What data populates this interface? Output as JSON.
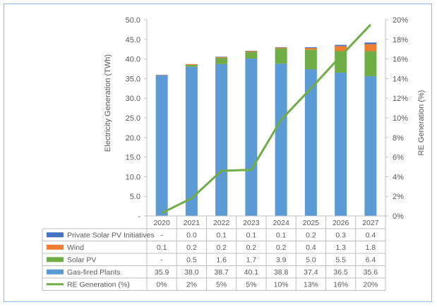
{
  "chart_data": {
    "type": "bar",
    "subtype": "stacked bar with secondary-axis line and data table",
    "categories": [
      "2020",
      "2021",
      "2022",
      "2023",
      "2024",
      "2025",
      "2026",
      "2027"
    ],
    "ylabel": "Electricity Generation (TWh)",
    "y2label": "RE Generation (%)",
    "ylim": [
      0,
      50
    ],
    "y2lim": [
      0,
      20
    ],
    "yticks": [
      "-",
      "5.0",
      "10.0",
      "15.0",
      "20.0",
      "25.0",
      "30.0",
      "35.0",
      "40.0",
      "45.0",
      "50.0"
    ],
    "y2ticks": [
      "0%",
      "2%",
      "4%",
      "6%",
      "8%",
      "10%",
      "12%",
      "14%",
      "16%",
      "18%",
      "20%"
    ],
    "grid": false,
    "legend": "data table below chart",
    "series": [
      {
        "name": "Private Solar PV Initiatives",
        "kind": "bar",
        "color": "#4472c4",
        "values": [
          0,
          0.0,
          0.1,
          0.1,
          0.1,
          0.2,
          0.3,
          0.4
        ],
        "labels": [
          "-",
          "0.0",
          "0.1",
          "0.1",
          "0.1",
          "0.2",
          "0.3",
          "0.4"
        ]
      },
      {
        "name": "Wind",
        "kind": "bar",
        "color": "#ed7d31",
        "values": [
          0.1,
          0.2,
          0.2,
          0.2,
          0.2,
          0.4,
          1.3,
          1.8
        ],
        "labels": [
          "0.1",
          "0.2",
          "0.2",
          "0.2",
          "0.2",
          "0.4",
          "1.3",
          "1.8"
        ]
      },
      {
        "name": "Solar PV",
        "kind": "bar",
        "color": "#70ad47",
        "values": [
          0,
          0.5,
          1.6,
          1.7,
          3.9,
          5.0,
          5.5,
          6.4
        ],
        "labels": [
          "-",
          "0.5",
          "1.6",
          "1.7",
          "3.9",
          "5.0",
          "5.5",
          "6.4"
        ]
      },
      {
        "name": "Gas-fired Plants",
        "kind": "bar",
        "color": "#5b9bd5",
        "values": [
          35.9,
          38.0,
          38.7,
          40.1,
          38.8,
          37.4,
          36.5,
          35.6
        ],
        "labels": [
          "35.9",
          "38.0",
          "38.7",
          "40.1",
          "38.8",
          "37.4",
          "36.5",
          "35.6"
        ]
      },
      {
        "name": "RE Generation (%)",
        "kind": "line",
        "axis": "secondary",
        "color": "#70ad47",
        "values": [
          0.3,
          1.8,
          4.6,
          4.7,
          9.8,
          13.0,
          16.3,
          19.5
        ],
        "labels": [
          "0%",
          "2%",
          "5%",
          "5%",
          "10%",
          "13%",
          "16%",
          "20%"
        ]
      }
    ]
  }
}
